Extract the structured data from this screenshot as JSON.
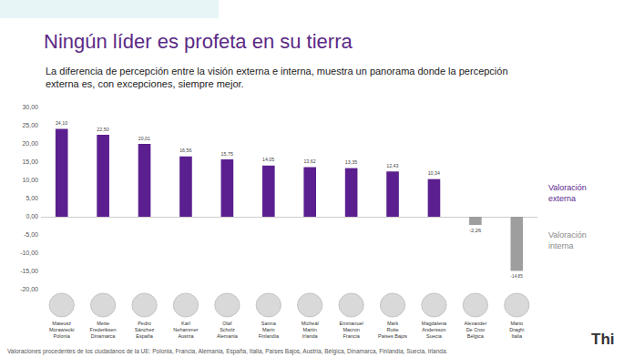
{
  "chart_data": {
    "type": "bar",
    "title": "Ningún líder es profeta en su tierra",
    "subtitle": [
      "La diferencia de percepción entre la visión externa e interna, muestra un panorama donde la percepción",
      "externa es, con excepciones, siempre mejor."
    ],
    "categories": [
      "Mateusz Morawiecki",
      "Mette Frederiksen",
      "Pedro Sánchez",
      "Karl Nehammer",
      "Olaf Scholz",
      "Sanna Marin",
      "Micheál Martin",
      "Emmanuel Macron",
      "Mark Rutte",
      "Magdalena Andersson",
      "Alexander De Croo",
      "Mario Draghi"
    ],
    "category_countries": [
      "Polonia",
      "Dinamarca",
      "España",
      "Austria",
      "Alemania",
      "Finlandia",
      "Irlanda",
      "Francia",
      "Países Bajos",
      "Suecia",
      "Bélgica",
      "Italia"
    ],
    "values": [
      24.1,
      22.5,
      20.01,
      16.56,
      15.75,
      14.05,
      13.62,
      13.35,
      12.43,
      10.34,
      -2.26,
      -14.85
    ],
    "value_labels": [
      "24,10",
      "22,50",
      "20,01",
      "16,56",
      "15,75",
      "14,05",
      "13,62",
      "13,35",
      "12,43",
      "10,34",
      "-2,26",
      "-14,85"
    ],
    "colors": [
      "#5b1f8f",
      "#5b1f8f",
      "#5b1f8f",
      "#5b1f8f",
      "#5b1f8f",
      "#5b1f8f",
      "#5b1f8f",
      "#5b1f8f",
      "#5b1f8f",
      "#5b1f8f",
      "#9e9e9e",
      "#9e9e9e"
    ],
    "ylim": [
      -20,
      30
    ],
    "yticks": [
      {
        "value": 30,
        "label": "30,00"
      },
      {
        "value": 25,
        "label": "25,00"
      },
      {
        "value": 20,
        "label": "20,00"
      },
      {
        "value": 15,
        "label": "15,00"
      },
      {
        "value": 10,
        "label": "10,00"
      },
      {
        "value": 5,
        "label": "5,00"
      },
      {
        "value": 0,
        "label": "0,00"
      },
      {
        "value": -5,
        "label": "-5,00"
      },
      {
        "value": -10,
        "label": "-10,00"
      },
      {
        "value": -15,
        "label": "-15,00"
      },
      {
        "value": -20,
        "label": "-20,00"
      }
    ],
    "grid": false,
    "data_labels": true,
    "annotations": [
      {
        "text": "Valoración externa",
        "color": "#5b1f8f"
      },
      {
        "text": "Valoración interna",
        "color": "#8a8a8a"
      },
      {
        "text": "Valoraciones procedentes de los ciudadanos de la UE: Polonia, Francia, Alemania, España, Italia, Países Bajos, Austria, Bélgica, Dinamarca, Finlandia, Suecia, Irlanda.",
        "color": "#555555"
      },
      {
        "text": "Thi",
        "color": "#333333"
      }
    ]
  }
}
